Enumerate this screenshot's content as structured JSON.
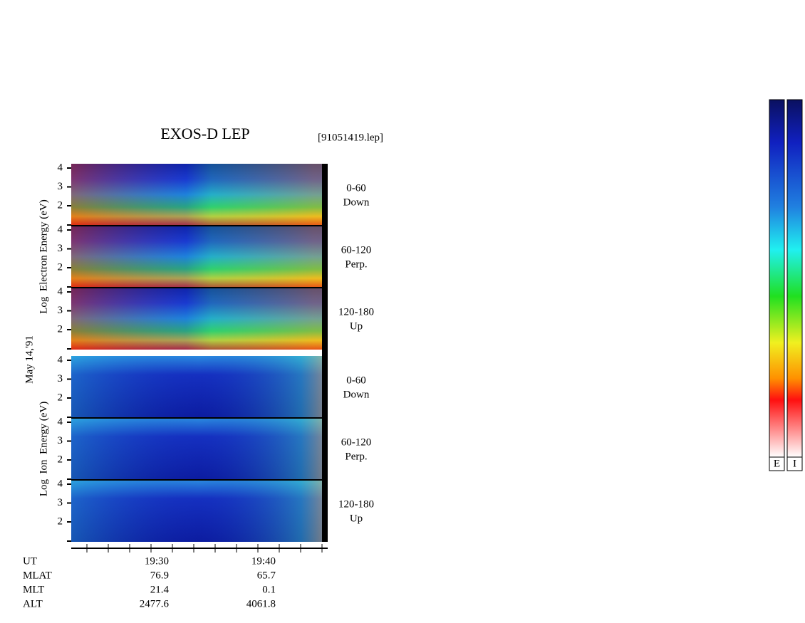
{
  "header": {
    "title": "EXOS-D LEP",
    "file": "[91051419.lep]"
  },
  "date": "May 14,'91",
  "groups": [
    {
      "axis_label": "Log  Electron Energy (eV)",
      "panels": [
        {
          "angle": "0-60",
          "direction": "Down",
          "ticks": [
            "4",
            "3",
            "2"
          ]
        },
        {
          "angle": "60-120",
          "direction": "Perp.",
          "ticks": [
            "4",
            "3",
            "2"
          ]
        },
        {
          "angle": "120-180",
          "direction": "Up",
          "ticks": [
            "4",
            "3",
            "2"
          ]
        }
      ]
    },
    {
      "axis_label": "Log  Ion  Energy (eV)",
      "panels": [
        {
          "angle": "0-60",
          "direction": "Down",
          "ticks": [
            "4",
            "3",
            "2"
          ]
        },
        {
          "angle": "60-120",
          "direction": "Perp.",
          "ticks": [
            "4",
            "3",
            "2"
          ]
        },
        {
          "angle": "120-180",
          "direction": "Up",
          "ticks": [
            "4",
            "3",
            "2"
          ]
        }
      ]
    }
  ],
  "ephemeris": [
    {
      "label": "UT",
      "values": [
        "19:30",
        "19:40"
      ]
    },
    {
      "label": "MLAT",
      "values": [
        "76.9",
        "65.7"
      ]
    },
    {
      "label": "MLT",
      "values": [
        "21.4",
        "0.1"
      ]
    },
    {
      "label": "ALT",
      "values": [
        "2477.6",
        "4061.8"
      ]
    }
  ],
  "colorbars": [
    "E",
    "I"
  ]
}
